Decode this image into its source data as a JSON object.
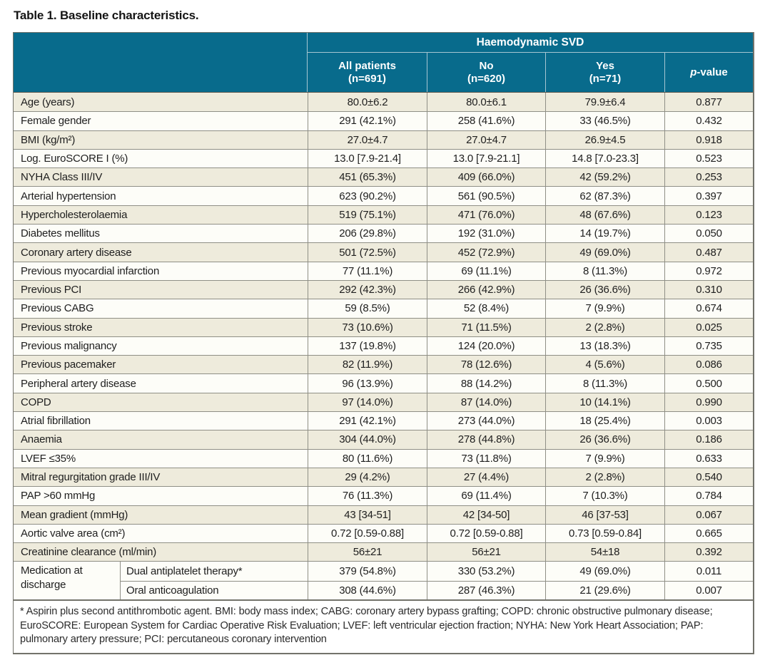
{
  "title": "Table 1. Baseline characteristics.",
  "table": {
    "group_header": "Haemodynamic SVD",
    "columns": [
      {
        "label": "All patients",
        "sub": "(n=691)"
      },
      {
        "label": "No",
        "sub": "(n=620)"
      },
      {
        "label": "Yes",
        "sub": "(n=71)"
      },
      {
        "label_italic": "p",
        "label_rest": "-value"
      }
    ],
    "rows": [
      {
        "label": "Age (years)",
        "values": [
          "80.0±6.2",
          "80.0±6.1",
          "79.9±6.4",
          "0.877"
        ]
      },
      {
        "label": "Female gender",
        "values": [
          "291 (42.1%)",
          "258 (41.6%)",
          "33 (46.5%)",
          "0.432"
        ]
      },
      {
        "label": "BMI (kg/m²)",
        "values": [
          "27.0±4.7",
          "27.0±4.7",
          "26.9±4.5",
          "0.918"
        ]
      },
      {
        "label": "Log. EuroSCORE I (%)",
        "values": [
          "13.0 [7.9-21.4]",
          "13.0 [7.9-21.1]",
          "14.8 [7.0-23.3]",
          "0.523"
        ]
      },
      {
        "label": "NYHA Class III/IV",
        "values": [
          "451 (65.3%)",
          "409 (66.0%)",
          "42 (59.2%)",
          "0.253"
        ]
      },
      {
        "label": "Arterial hypertension",
        "values": [
          "623 (90.2%)",
          "561 (90.5%)",
          "62 (87.3%)",
          "0.397"
        ]
      },
      {
        "label": "Hypercholesterolaemia",
        "values": [
          "519 (75.1%)",
          "471 (76.0%)",
          "48 (67.6%)",
          "0.123"
        ]
      },
      {
        "label": "Diabetes mellitus",
        "values": [
          "206 (29.8%)",
          "192 (31.0%)",
          "14 (19.7%)",
          "0.050"
        ]
      },
      {
        "label": "Coronary artery disease",
        "values": [
          "501 (72.5%)",
          "452 (72.9%)",
          "49 (69.0%)",
          "0.487"
        ]
      },
      {
        "label": "Previous myocardial infarction",
        "values": [
          "77 (11.1%)",
          "69 (11.1%)",
          "8 (11.3%)",
          "0.972"
        ]
      },
      {
        "label": "Previous PCI",
        "values": [
          "292 (42.3%)",
          "266 (42.9%)",
          "26 (36.6%)",
          "0.310"
        ]
      },
      {
        "label": "Previous CABG",
        "values": [
          "59 (8.5%)",
          "52 (8.4%)",
          "7 (9.9%)",
          "0.674"
        ]
      },
      {
        "label": "Previous stroke",
        "values": [
          "73 (10.6%)",
          "71 (11.5%)",
          "2 (2.8%)",
          "0.025"
        ]
      },
      {
        "label": "Previous malignancy",
        "values": [
          "137 (19.8%)",
          "124 (20.0%)",
          "13 (18.3%)",
          "0.735"
        ]
      },
      {
        "label": "Previous pacemaker",
        "values": [
          "82 (11.9%)",
          "78 (12.6%)",
          "4 (5.6%)",
          "0.086"
        ]
      },
      {
        "label": "Peripheral artery disease",
        "values": [
          "96 (13.9%)",
          "88 (14.2%)",
          "8 (11.3%)",
          "0.500"
        ]
      },
      {
        "label": "COPD",
        "values": [
          "97 (14.0%)",
          "87 (14.0%)",
          "10 (14.1%)",
          "0.990"
        ]
      },
      {
        "label": "Atrial fibrillation",
        "values": [
          "291 (42.1%)",
          "273 (44.0%)",
          "18 (25.4%)",
          "0.003"
        ]
      },
      {
        "label": "Anaemia",
        "values": [
          "304 (44.0%)",
          "278 (44.8%)",
          "26 (36.6%)",
          "0.186"
        ]
      },
      {
        "label": "LVEF ≤35%",
        "values": [
          "80 (11.6%)",
          "73 (11.8%)",
          "7 (9.9%)",
          "0.633"
        ]
      },
      {
        "label": "Mitral regurgitation grade III/IV",
        "values": [
          "29 (4.2%)",
          "27 (4.4%)",
          "2 (2.8%)",
          "0.540"
        ]
      },
      {
        "label": "PAP >60 mmHg",
        "values": [
          "76 (11.3%)",
          "69 (11.4%)",
          "7 (10.3%)",
          "0.784"
        ]
      },
      {
        "label": "Mean gradient (mmHg)",
        "values": [
          "43 [34-51]",
          "42 [34-50]",
          "46 [37-53]",
          "0.067"
        ]
      },
      {
        "label": "Aortic valve area (cm²)",
        "values": [
          "0.72 [0.59-0.88]",
          "0.72 [0.59-0.88]",
          "0.73 [0.59-0.84]",
          "0.665"
        ]
      },
      {
        "label": "Creatinine clearance (ml/min)",
        "values": [
          "56±21",
          "56±21",
          "54±18",
          "0.392"
        ]
      }
    ],
    "group_rows": {
      "label": "Medication at discharge",
      "rows": [
        {
          "label": "Dual antiplatelet therapy*",
          "values": [
            "379 (54.8%)",
            "330 (53.2%)",
            "49 (69.0%)",
            "0.011"
          ]
        },
        {
          "label": "Oral anticoagulation",
          "values": [
            "308 (44.6%)",
            "287 (46.3%)",
            "21 (29.6%)",
            "0.007"
          ]
        }
      ]
    }
  },
  "footnote": "* Aspirin plus second antithrombotic agent. BMI: body mass index; CABG: coronary artery bypass grafting; COPD: chronic obstructive pulmonary disease; EuroSCORE: European System for Cardiac Operative Risk Evaluation; LVEF: left ventricular ejection fraction; NYHA: New York Heart Association; PAP: pulmonary artery pressure; PCI: percutaneous coronary intervention",
  "colors": {
    "header_teal": "#086b8c",
    "row_beige": "#eeebdc",
    "row_white": "#fdfdf8",
    "grid_line": "#8f8f86",
    "outer_border": "#72726a",
    "header_divider": "#a6c6d2"
  }
}
